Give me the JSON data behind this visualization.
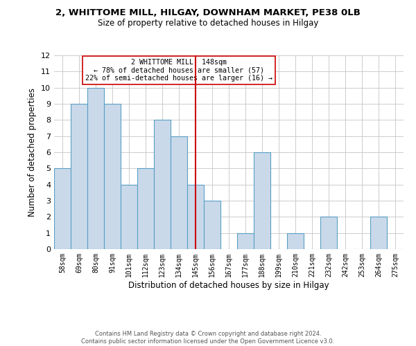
{
  "title": "2, WHITTOME MILL, HILGAY, DOWNHAM MARKET, PE38 0LB",
  "subtitle": "Size of property relative to detached houses in Hilgay",
  "xlabel": "Distribution of detached houses by size in Hilgay",
  "ylabel": "Number of detached properties",
  "bin_labels": [
    "58sqm",
    "69sqm",
    "80sqm",
    "91sqm",
    "101sqm",
    "112sqm",
    "123sqm",
    "134sqm",
    "145sqm",
    "156sqm",
    "167sqm",
    "177sqm",
    "188sqm",
    "199sqm",
    "210sqm",
    "221sqm",
    "232sqm",
    "242sqm",
    "253sqm",
    "264sqm",
    "275sqm"
  ],
  "bar_values": [
    5,
    9,
    10,
    9,
    4,
    5,
    8,
    7,
    4,
    3,
    0,
    1,
    6,
    0,
    1,
    0,
    2,
    0,
    0,
    2,
    0
  ],
  "bar_color": "#c9d9ea",
  "bar_edgecolor": "#5a9fc4",
  "subject_line_color": "#cc0000",
  "annotation_text": "2 WHITTOME MILL: 148sqm\n← 78% of detached houses are smaller (57)\n22% of semi-detached houses are larger (16) →",
  "annotation_box_edgecolor": "#cc0000",
  "annotation_box_facecolor": "#ffffff",
  "ylim": [
    0,
    12
  ],
  "yticks": [
    0,
    1,
    2,
    3,
    4,
    5,
    6,
    7,
    8,
    9,
    10,
    11,
    12
  ],
  "grid_color": "#cccccc",
  "background_color": "#ffffff",
  "footer_line1": "Contains HM Land Registry data © Crown copyright and database right 2024.",
  "footer_line2": "Contains public sector information licensed under the Open Government Licence v3.0."
}
